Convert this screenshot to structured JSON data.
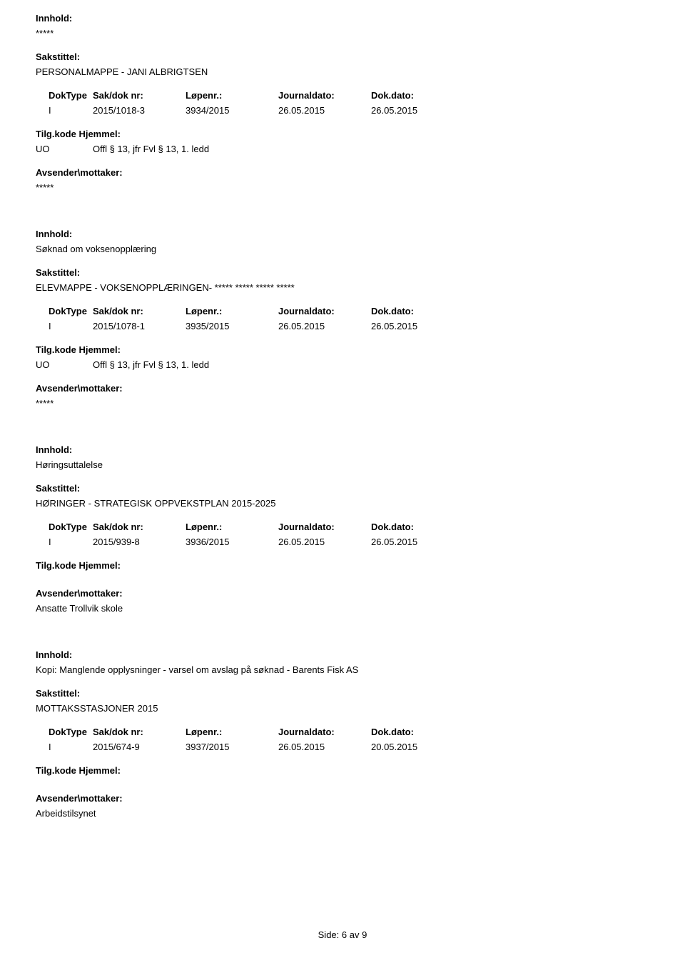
{
  "labels": {
    "innhold": "Innhold:",
    "sakstittel": "Sakstittel:",
    "doktype": "DokType",
    "sakdoknr": "Sak/dok nr:",
    "lopenr": "Løpenr.:",
    "journaldato": "Journaldato:",
    "dokdato": "Dok.dato:",
    "tilgkode": "Tilg.kode",
    "hjemmel": "Hjemmel:",
    "avsender": "Avsender\\mottaker:"
  },
  "entries": [
    {
      "innhold": "*****",
      "sakstittel": "PERSONALMAPPE - JANI ALBRIGTSEN",
      "doktype": "I",
      "sakdoknr": "2015/1018-3",
      "lopenr": "3934/2015",
      "journaldato": "26.05.2015",
      "dokdato": "26.05.2015",
      "hjemmel_code": "UO",
      "hjemmel_text": "Offl § 13, jfr Fvl § 13, 1. ledd",
      "avsender": "*****"
    },
    {
      "innhold": "Søknad om voksenopplæring",
      "sakstittel": "ELEVMAPPE - VOKSENOPPLÆRINGEN- ***** ***** ***** *****",
      "doktype": "I",
      "sakdoknr": "2015/1078-1",
      "lopenr": "3935/2015",
      "journaldato": "26.05.2015",
      "dokdato": "26.05.2015",
      "hjemmel_code": "UO",
      "hjemmel_text": "Offl § 13, jfr Fvl § 13, 1. ledd",
      "avsender": "*****"
    },
    {
      "innhold": "Høringsuttalelse",
      "sakstittel": "HØRINGER - STRATEGISK OPPVEKSTPLAN 2015-2025",
      "doktype": "I",
      "sakdoknr": "2015/939-8",
      "lopenr": "3936/2015",
      "journaldato": "26.05.2015",
      "dokdato": "26.05.2015",
      "hjemmel_code": "",
      "hjemmel_text": "",
      "avsender": "Ansatte Trollvik skole"
    },
    {
      "innhold": "Kopi: Manglende opplysninger - varsel om avslag på søknad - Barents Fisk AS",
      "sakstittel": "MOTTAKSSTASJONER 2015",
      "doktype": "I",
      "sakdoknr": "2015/674-9",
      "lopenr": "3937/2015",
      "journaldato": "26.05.2015",
      "dokdato": "20.05.2015",
      "hjemmel_code": "",
      "hjemmel_text": "",
      "avsender": "Arbeidstilsynet"
    }
  ],
  "footer": {
    "side_label": "Side:",
    "page": "6",
    "av": "av",
    "total": "9"
  }
}
